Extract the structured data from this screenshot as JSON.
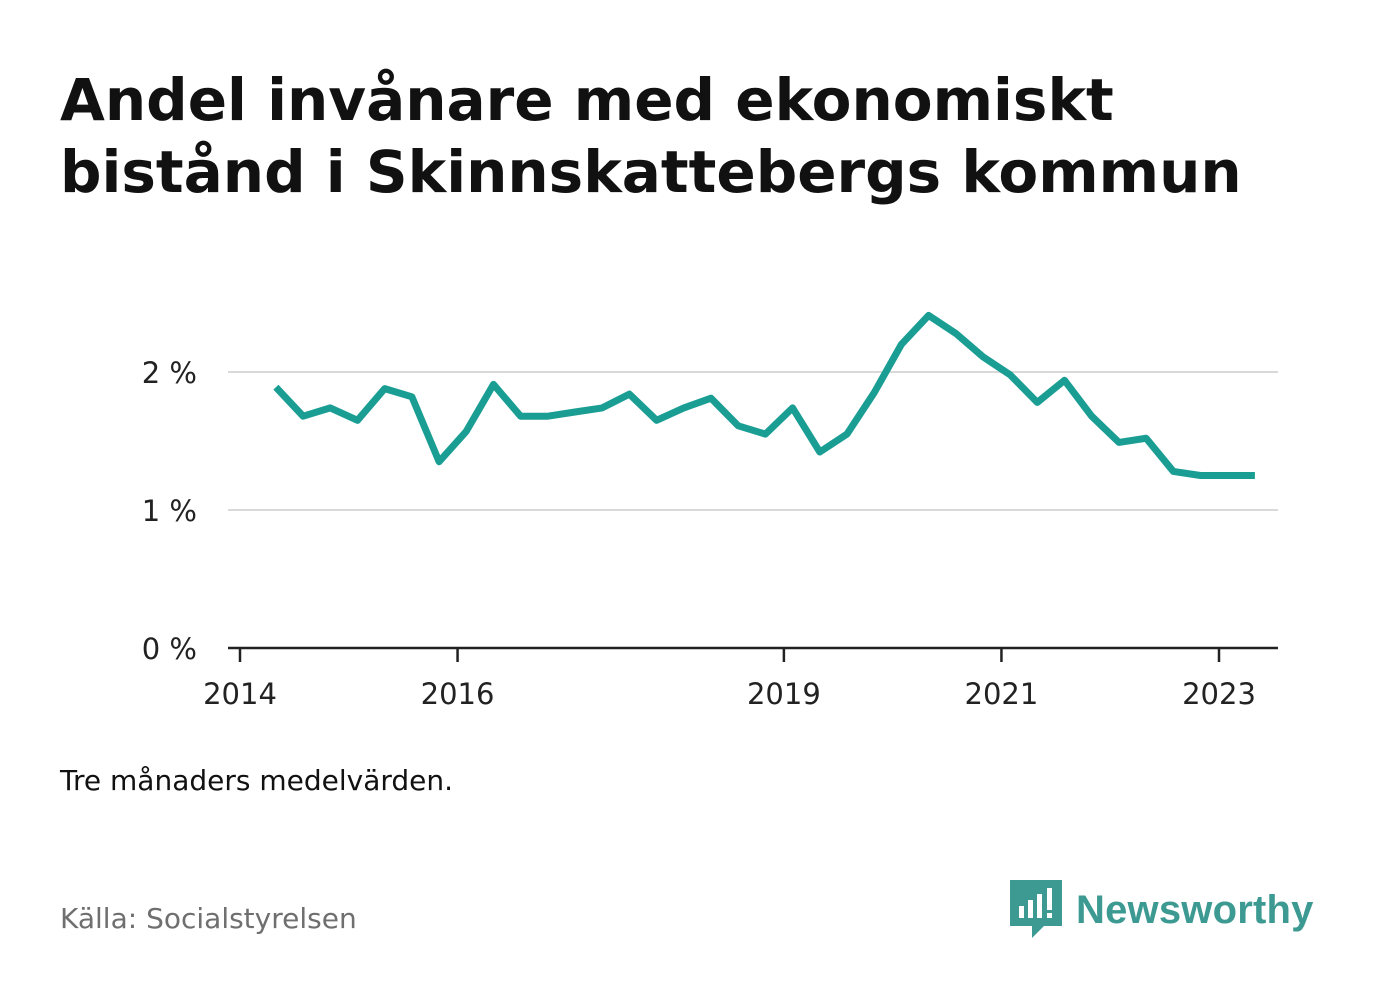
{
  "title": "Andel invånare med ekonomiskt bistånd i Skinnskattebergs kommun",
  "note": "Tre månaders medelvärden.",
  "source": "Källa: Socialstyrelsen",
  "brand": {
    "name": "Newsworthy",
    "color": "#3d9a92",
    "icon": "newsworthy-logo-icon"
  },
  "chart_data": {
    "type": "line",
    "title": "Andel invånare med ekonomiskt bistånd i Skinnskattebergs kommun",
    "xlabel": "",
    "ylabel": "",
    "x_unit": "year (decimal, quarter midpoints)",
    "x_ticks": [
      2014,
      2016,
      2019,
      2021,
      2023
    ],
    "x_tick_labels": [
      "2014",
      "2016",
      "2019",
      "2021",
      "2023"
    ],
    "y_ticks": [
      0,
      1,
      2
    ],
    "y_tick_labels": [
      "0 %",
      "1 %",
      "2 %"
    ],
    "ylim": [
      0,
      2.5
    ],
    "xlim": [
      2014,
      2023.5
    ],
    "grid": true,
    "line_color": "#1a9e94",
    "series": [
      {
        "name": "",
        "x": [
          2014.33,
          2014.58,
          2014.83,
          2015.08,
          2015.33,
          2015.58,
          2015.83,
          2016.08,
          2016.33,
          2016.58,
          2016.83,
          2017.08,
          2017.33,
          2017.58,
          2017.83,
          2018.08,
          2018.33,
          2018.58,
          2018.83,
          2019.08,
          2019.33,
          2019.58,
          2019.83,
          2020.08,
          2020.33,
          2020.58,
          2020.83,
          2021.08,
          2021.33,
          2021.58,
          2021.83,
          2022.08,
          2022.33,
          2022.58,
          2022.83,
          2023.08,
          2023.33
        ],
        "values": [
          1.89,
          1.68,
          1.74,
          1.65,
          1.88,
          1.82,
          1.35,
          1.57,
          1.91,
          1.68,
          1.68,
          1.71,
          1.74,
          1.84,
          1.65,
          1.74,
          1.81,
          1.61,
          1.55,
          1.74,
          1.42,
          1.55,
          1.85,
          2.2,
          2.41,
          2.28,
          2.11,
          1.98,
          1.78,
          1.94,
          1.68,
          1.49,
          1.52,
          1.28,
          1.25,
          1.25,
          1.25
        ]
      }
    ]
  }
}
